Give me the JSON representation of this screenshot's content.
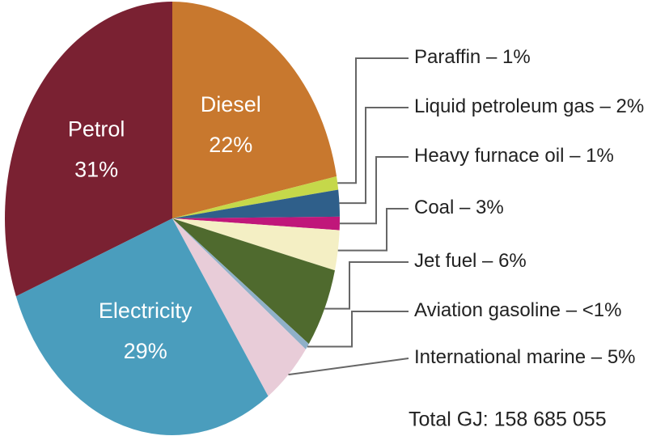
{
  "chart_data": {
    "type": "pie",
    "categories": [
      "Diesel",
      "Paraffin",
      "Liquid petroleum gas",
      "Heavy furnace oil",
      "Coal",
      "Jet fuel",
      "Aviation gasoline",
      "International marine",
      "Electricity",
      "Petrol"
    ],
    "values": [
      22,
      1,
      2,
      1,
      3,
      6,
      0.5,
      5,
      29,
      31
    ],
    "value_labels": [
      "22%",
      "1%",
      "2%",
      "1%",
      "3%",
      "6%",
      "<1%",
      "5%",
      "29%",
      "31%"
    ],
    "colors": [
      "#c8782e",
      "#c5d84a",
      "#2f5f8a",
      "#c0177a",
      "#f4efc4",
      "#4f6a2e",
      "#8fb0c8",
      "#e8ccd8",
      "#4a9dbd",
      "#7a2132"
    ],
    "label_separator": " – ",
    "annotation": "Total GJ: 158 685 055"
  }
}
